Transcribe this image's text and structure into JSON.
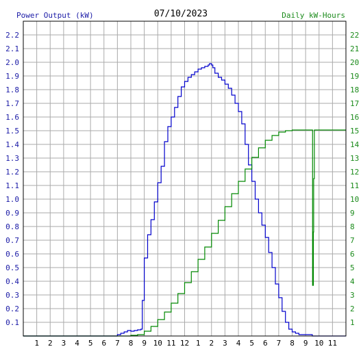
{
  "chart_data": {
    "type": "line",
    "title": "07/10/2023",
    "y_left_label": "Power Output (kW)",
    "y_right_label": "Daily kW-Hours",
    "x_ticks": [
      "1",
      "2",
      "3",
      "4",
      "5",
      "6",
      "7",
      "8",
      "9",
      "10",
      "11",
      "12",
      "1",
      "2",
      "3",
      "4",
      "5",
      "6",
      "7",
      "8",
      "9",
      "10",
      "11"
    ],
    "y_left_ticks": [
      "0.1",
      "0.2",
      "0.3",
      "0.4",
      "0.5",
      "0.6",
      "0.7",
      "0.8",
      "0.9",
      "1.0",
      "1.1",
      "1.2",
      "1.3",
      "1.4",
      "1.5",
      "1.6",
      "1.7",
      "1.8",
      "1.9",
      "2.0",
      "2.1",
      "2.2"
    ],
    "y_right_ticks": [
      "1",
      "2",
      "3",
      "4",
      "5",
      "6",
      "7",
      "8",
      "9",
      "10",
      "11",
      "12",
      "13",
      "14",
      "15",
      "16",
      "17",
      "18",
      "19",
      "20",
      "21",
      "22"
    ],
    "xlim": [
      0,
      24
    ],
    "ylim_left": [
      0,
      2.3
    ],
    "ylim_right": [
      0,
      23
    ],
    "grid": true,
    "colors": {
      "left_axis": "#1a1aa6",
      "right_axis": "#1a8a1a",
      "grid": "#aaaaaa",
      "power_series": "#0000cc",
      "energy_series": "#008800"
    },
    "series": [
      {
        "axis": "left",
        "x": [
          0,
          6.0,
          7.0,
          7.25,
          7.5,
          7.75,
          8.0,
          8.25,
          8.5,
          8.75,
          8.85,
          9.0,
          9.25,
          9.5,
          9.75,
          10.0,
          10.25,
          10.5,
          10.75,
          11.0,
          11.25,
          11.5,
          11.75,
          12.0,
          12.25,
          12.5,
          12.75,
          13.0,
          13.25,
          13.5,
          13.75,
          13.85,
          14.0,
          14.1,
          14.25,
          14.5,
          14.75,
          15.0,
          15.25,
          15.5,
          15.75,
          16.0,
          16.25,
          16.5,
          16.75,
          17.0,
          17.25,
          17.5,
          17.75,
          18.0,
          18.25,
          18.5,
          18.75,
          19.0,
          19.25,
          19.5,
          19.75,
          20.0,
          20.25,
          20.5,
          21.0,
          21.5,
          21.65,
          22.0,
          24.0
        ],
        "y": [
          0,
          0,
          0.01,
          0.02,
          0.03,
          0.04,
          0.035,
          0.04,
          0.045,
          0.05,
          0.26,
          0.57,
          0.74,
          0.85,
          0.98,
          1.12,
          1.24,
          1.42,
          1.53,
          1.6,
          1.67,
          1.75,
          1.82,
          1.86,
          1.89,
          1.91,
          1.93,
          1.95,
          1.96,
          1.97,
          1.98,
          1.99,
          1.98,
          1.96,
          1.92,
          1.89,
          1.87,
          1.84,
          1.81,
          1.76,
          1.7,
          1.64,
          1.55,
          1.4,
          1.25,
          1.13,
          1.0,
          0.9,
          0.81,
          0.72,
          0.61,
          0.5,
          0.38,
          0.28,
          0.18,
          0.1,
          0.05,
          0.03,
          0.02,
          0.01,
          0.01,
          0.0,
          0.0,
          0.0,
          0.0
        ]
      },
      {
        "axis": "right",
        "x": [
          0,
          7.0,
          8.0,
          8.5,
          9.0,
          9.5,
          10.0,
          10.5,
          11.0,
          11.5,
          12.0,
          12.5,
          13.0,
          13.5,
          14.0,
          14.5,
          15.0,
          15.5,
          16.0,
          16.5,
          17.0,
          17.5,
          18.0,
          18.5,
          19.0,
          19.5,
          20.0,
          21.0,
          21.52,
          21.52,
          21.58,
          21.6,
          21.65,
          22.0,
          24.0
        ],
        "y": [
          0,
          0,
          0.05,
          0.1,
          0.35,
          0.7,
          1.2,
          1.75,
          2.4,
          3.1,
          3.9,
          4.7,
          5.6,
          6.5,
          7.5,
          8.45,
          9.45,
          10.4,
          11.3,
          12.2,
          13.05,
          13.75,
          14.3,
          14.65,
          14.9,
          15.0,
          15.05,
          15.05,
          15.05,
          3.7,
          7.6,
          11.5,
          15.05,
          15.05,
          15.05
        ]
      }
    ]
  }
}
